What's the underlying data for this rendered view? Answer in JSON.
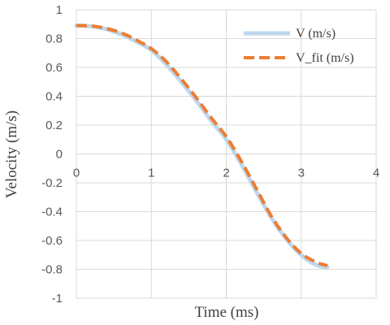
{
  "chart_data": {
    "type": "line",
    "title": "",
    "xlabel": "Time (ms)",
    "ylabel": "Velocity (m/s)",
    "xlim": [
      0,
      4
    ],
    "ylim": [
      -1,
      1
    ],
    "x_ticks": [
      0,
      1,
      2,
      3,
      4
    ],
    "y_ticks": [
      1,
      0.8,
      0.6,
      0.4,
      0.2,
      0,
      -0.2,
      -0.4,
      -0.6,
      -0.8,
      -1
    ],
    "x_tick_labels": [
      "0",
      "1",
      "2",
      "3",
      "4"
    ],
    "y_tick_labels": [
      "1",
      "0.8",
      "0.6",
      "0.4",
      "0.2",
      "0",
      "-0.2",
      "-0.4",
      "-0.6",
      "-0.8",
      "-1"
    ],
    "grid": true,
    "legend_position": "top-right",
    "series": [
      {
        "name": "V (m/s)",
        "color": "#bdd7ee",
        "style": "solid",
        "x": [
          0,
          0.2,
          0.4,
          0.6,
          0.8,
          1.0,
          1.2,
          1.4,
          1.6,
          1.8,
          2.0,
          2.2,
          2.4,
          2.6,
          2.8,
          3.0,
          3.2,
          3.35
        ],
        "y": [
          0.89,
          0.885,
          0.865,
          0.83,
          0.78,
          0.72,
          0.62,
          0.5,
          0.37,
          0.23,
          0.1,
          -0.07,
          -0.26,
          -0.44,
          -0.59,
          -0.7,
          -0.77,
          -0.785
        ]
      },
      {
        "name": "V_fit (m/s)",
        "color": "#ed7d31",
        "style": "dashed",
        "x": [
          0,
          0.2,
          0.4,
          0.6,
          0.8,
          1.0,
          1.2,
          1.4,
          1.6,
          1.8,
          2.0,
          2.2,
          2.4,
          2.6,
          2.8,
          3.0,
          3.2,
          3.35
        ],
        "y": [
          0.89,
          0.888,
          0.87,
          0.84,
          0.79,
          0.73,
          0.64,
          0.52,
          0.39,
          0.25,
          0.12,
          -0.05,
          -0.24,
          -0.43,
          -0.58,
          -0.69,
          -0.75,
          -0.775
        ]
      }
    ]
  }
}
